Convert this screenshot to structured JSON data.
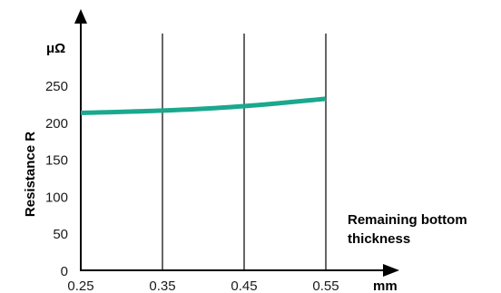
{
  "chart_data": {
    "type": "line",
    "title": "",
    "ylabel": "Resistance R",
    "y_unit": "μΩ",
    "xlabel": "Remaining bottom thickness",
    "xlabel_lines": [
      "Remaining bottom",
      "thickness"
    ],
    "x_unit": "mm",
    "x": [
      0.25,
      0.35,
      0.45,
      0.55
    ],
    "x_tick_labels": [
      "0.25",
      "0.35",
      "0.45",
      "0.55"
    ],
    "y_ticks": [
      0,
      50,
      100,
      150,
      200,
      250
    ],
    "y_tick_labels": [
      "0",
      "50",
      "100",
      "150",
      "200",
      "250"
    ],
    "ylim": [
      0,
      250
    ],
    "series": [
      {
        "values": [
          214,
          217,
          223,
          233
        ],
        "color": "#1aa88e"
      }
    ],
    "grid": "vertical lines at x ticks"
  }
}
